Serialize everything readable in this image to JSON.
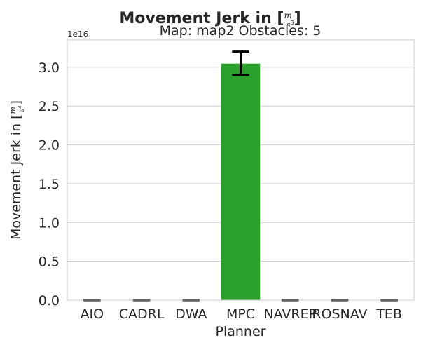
{
  "chart_data": {
    "type": "bar",
    "title_prefix": "Movement Jerk in [",
    "title_unit_num": "m",
    "title_unit_den": "s",
    "title_unit_exp": "3",
    "title_suffix": "]",
    "subtitle": "Map: map2 Obstacles: 5",
    "xlabel": "Planner",
    "ylabel_prefix": "Movement Jerk in [",
    "ylabel_unit_num": "m",
    "ylabel_unit_den": "s",
    "ylabel_unit_exp": "3",
    "ylabel_suffix": "]",
    "y_offset_text": "1e16",
    "ylim": [
      0,
      3.35
    ],
    "yticks": [
      0.0,
      0.5,
      1.0,
      1.5,
      2.0,
      2.5,
      3.0
    ],
    "ytick_labels": [
      "0.0",
      "0.5",
      "1.0",
      "1.5",
      "2.0",
      "2.5",
      "3.0"
    ],
    "grid": true,
    "categories": [
      "AIO",
      "CADRL",
      "DWA",
      "MPC",
      "NAVREP",
      "ROSNAV",
      "TEB"
    ],
    "series": [
      {
        "values": [
          0,
          0,
          0,
          3.05,
          0,
          0,
          0
        ],
        "errors_low": [
          0,
          0,
          0,
          2.9,
          0,
          0,
          0
        ],
        "errors_high": [
          0,
          0,
          0,
          3.2,
          0,
          0,
          0
        ],
        "colors": [
          "#1f77b4",
          "#ff7f0e",
          "#d62728",
          "#2ca02c",
          "#9467bd",
          "#8c564b",
          "#e377c2"
        ]
      }
    ]
  }
}
